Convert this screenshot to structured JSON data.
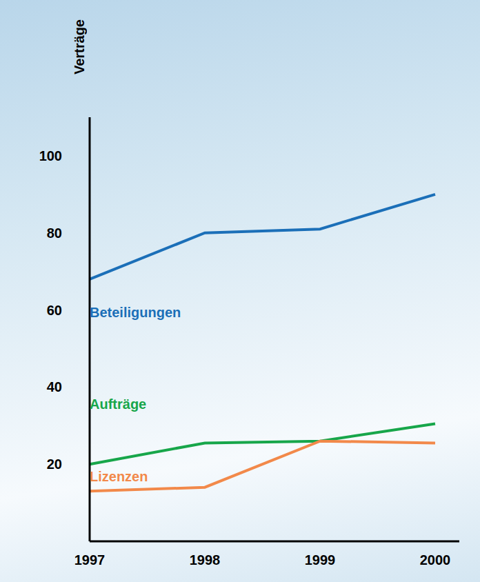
{
  "chart_data": {
    "type": "line",
    "y_label": "Verträge",
    "categories": [
      "1997",
      "1998",
      "1999",
      "2000"
    ],
    "series": [
      {
        "name": "Beteiligungen",
        "color": "#1b6fb8",
        "values": [
          68,
          80,
          81,
          90
        ]
      },
      {
        "name": "Aufträge",
        "color": "#17a64a",
        "values": [
          20,
          25.5,
          26,
          30.5
        ]
      },
      {
        "name": "Lizenzen",
        "color": "#f2894a",
        "values": [
          13,
          14,
          26,
          25.5
        ]
      }
    ],
    "ylim": [
      0,
      110
    ],
    "yticks": [
      20,
      40,
      60,
      80,
      100
    ],
    "grid": false
  }
}
